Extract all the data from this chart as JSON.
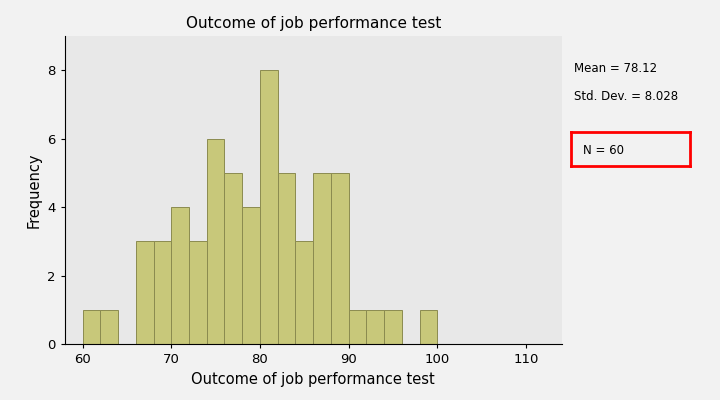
{
  "title": "Outcome of job performance test",
  "xlabel": "Outcome of job performance test",
  "ylabel": "Frequency",
  "bar_color": "#C8C87A",
  "bar_edge_color": "#8B8B50",
  "plot_bg_color": "#E8E8E8",
  "fig_bg_color": "#F2F2F2",
  "mean": 78.12,
  "std_dev": 8.028,
  "n": 60,
  "xlim": [
    58,
    114
  ],
  "ylim": [
    0,
    9
  ],
  "xticks": [
    60,
    70,
    80,
    90,
    100,
    110
  ],
  "yticks": [
    0,
    2,
    4,
    6,
    8
  ],
  "bin_edges": [
    60,
    62,
    64,
    66,
    68,
    70,
    72,
    74,
    76,
    78,
    80,
    82,
    84,
    86,
    88,
    90,
    92,
    94,
    96,
    98,
    100
  ],
  "frequencies": [
    1,
    1,
    0,
    3,
    3,
    4,
    3,
    6,
    5,
    4,
    8,
    5,
    3,
    5,
    5,
    1,
    1,
    1,
    0,
    1
  ]
}
